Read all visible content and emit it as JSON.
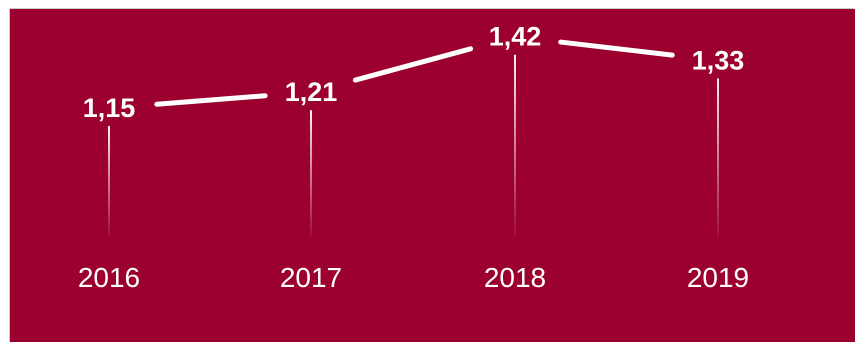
{
  "chart_data": {
    "type": "line",
    "categories": [
      "2016",
      "2017",
      "2018",
      "2019"
    ],
    "series": [
      {
        "values": [
          1.15,
          1.21,
          1.42,
          1.33
        ],
        "labels": [
          "1,15",
          "1,21",
          "1,42",
          "1,33"
        ]
      }
    ],
    "title": "",
    "xlabel": "",
    "ylabel": "",
    "ylim": [
      0,
      1.6
    ],
    "grid": false,
    "legend": "none",
    "colors": {
      "background": "#9b002f",
      "line": "#ffffff",
      "text": "#ffffff"
    }
  }
}
